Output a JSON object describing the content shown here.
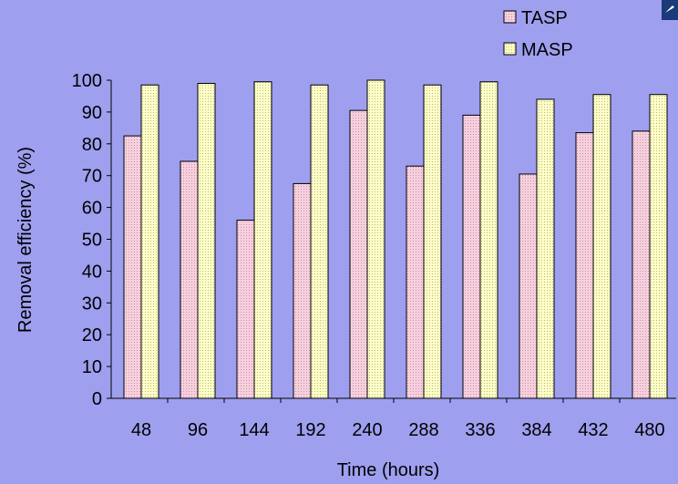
{
  "chart_data": {
    "type": "bar",
    "xlabel": "Time (hours)",
    "ylabel": "Removal efficiency (%)",
    "ylim": [
      0,
      100
    ],
    "yticks": [
      0,
      10,
      20,
      30,
      40,
      50,
      60,
      70,
      80,
      90,
      100
    ],
    "categories": [
      "48",
      "96",
      "144",
      "192",
      "240",
      "288",
      "336",
      "384",
      "432",
      "480"
    ],
    "series": [
      {
        "name": "TASP",
        "color": "#f5c8d8",
        "values": [
          82.5,
          74.5,
          56,
          67.5,
          90.5,
          73,
          89,
          70.5,
          83.5,
          84
        ]
      },
      {
        "name": "MASP",
        "color": "#ffffc0",
        "values": [
          98.5,
          99,
          99.5,
          98.5,
          100,
          98.5,
          99.5,
          94,
          95.5,
          95.5
        ]
      }
    ],
    "legend": "top-right",
    "grid": false
  }
}
